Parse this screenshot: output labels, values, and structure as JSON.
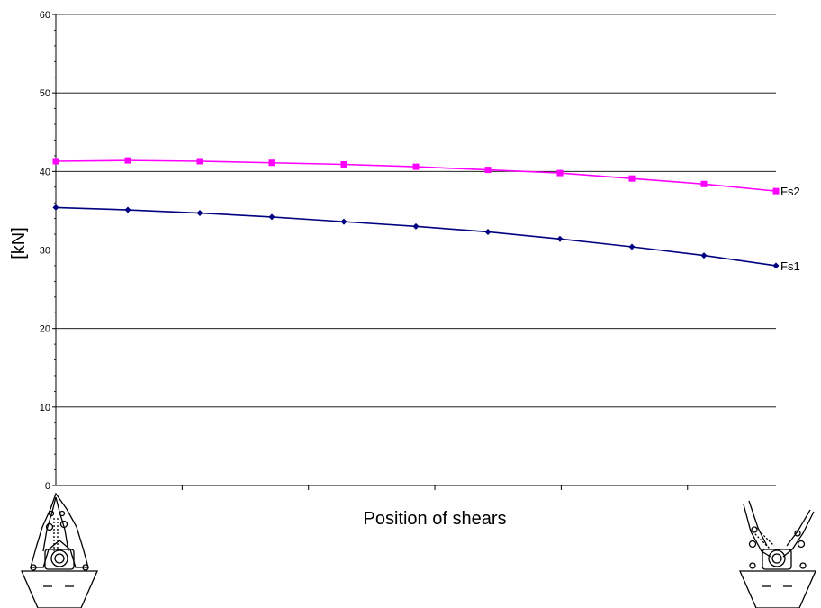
{
  "chart_data": {
    "type": "line",
    "title": "",
    "xlabel": "Position of shears",
    "ylabel": "[kN]",
    "ylim": [
      0,
      60
    ],
    "yticks": [
      0,
      10,
      20,
      30,
      40,
      50,
      60
    ],
    "grid": true,
    "x": [
      0,
      1,
      2,
      3,
      4,
      5,
      6,
      7,
      8,
      9,
      10
    ],
    "series": [
      {
        "name": "Fs1",
        "color": "#000080",
        "marker": "diamond",
        "values": [
          35.4,
          35.1,
          34.7,
          34.2,
          33.6,
          33.0,
          32.3,
          31.4,
          30.4,
          29.3,
          28.0
        ]
      },
      {
        "name": "Fs2",
        "color": "#ff00ff",
        "marker": "square",
        "values": [
          41.3,
          41.4,
          41.3,
          41.1,
          40.9,
          40.6,
          40.2,
          39.8,
          39.1,
          38.4,
          37.5
        ]
      }
    ],
    "icons": {
      "left": "shears-closed-icon",
      "right": "shears-open-icon"
    }
  }
}
